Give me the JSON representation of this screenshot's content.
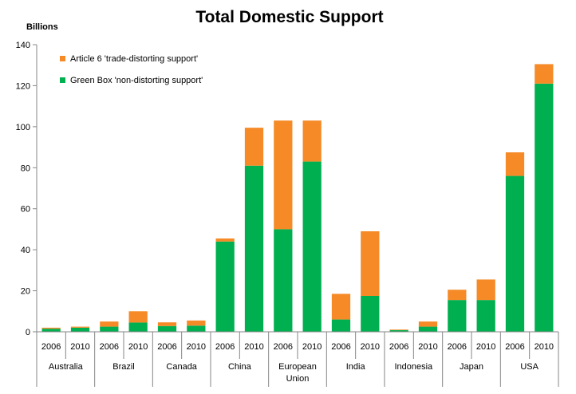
{
  "chart_data": {
    "type": "bar",
    "stacked": true,
    "title": "Total Domestic Support",
    "ylabel": "Billions",
    "xlabel": "",
    "ylim": [
      0,
      140
    ],
    "yticks": [
      0,
      20,
      40,
      60,
      80,
      100,
      120,
      140
    ],
    "grid": false,
    "legend_position": "top-left",
    "groups": [
      {
        "label": [
          "Australia"
        ],
        "years": [
          "2006",
          "2010"
        ]
      },
      {
        "label": [
          "Brazil"
        ],
        "years": [
          "2006",
          "2010"
        ]
      },
      {
        "label": [
          "Canada"
        ],
        "years": [
          "2006",
          "2010"
        ]
      },
      {
        "label": [
          "China"
        ],
        "years": [
          "2006",
          "2010"
        ]
      },
      {
        "label": [
          "European",
          "Union"
        ],
        "years": [
          "2006",
          "2010"
        ]
      },
      {
        "label": [
          "India"
        ],
        "years": [
          "2006",
          "2010"
        ]
      },
      {
        "label": [
          "Indonesia"
        ],
        "years": [
          "2006",
          "2010"
        ]
      },
      {
        "label": [
          "Japan"
        ],
        "years": [
          "2006",
          "2010"
        ]
      },
      {
        "label": [
          "USA"
        ],
        "years": [
          "2006",
          "2010"
        ]
      }
    ],
    "series": [
      {
        "name": "Green Box 'non-distorting support'",
        "color": "#00b050",
        "values": [
          1.5,
          2.0,
          2.5,
          4.5,
          2.8,
          3.0,
          44,
          81,
          50,
          83,
          6,
          17.5,
          0.8,
          2.5,
          15.5,
          15.5,
          76,
          121
        ]
      },
      {
        "name": "Article 6 'trade-distorting support'",
        "color": "#f58a27",
        "values": [
          0.5,
          0.5,
          2.5,
          5.5,
          1.8,
          2.5,
          1.5,
          18.5,
          53,
          20,
          12.5,
          31.5,
          0.3,
          2.5,
          5,
          10,
          11.5,
          9.5
        ]
      }
    ],
    "legend_order": [
      1,
      0
    ]
  }
}
